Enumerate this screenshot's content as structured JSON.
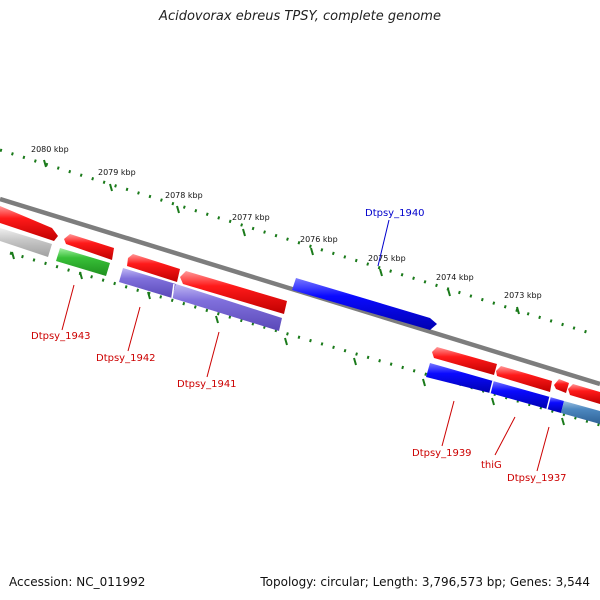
{
  "title": "Acidovorax ebreus TPSY, complete genome",
  "footer": {
    "accession": "Accession: NC_011992",
    "summary": "Topology: circular; Length: 3,796,573 bp; Genes: 3,544"
  },
  "colors": {
    "forward_gene": "#e00000",
    "reverse_gene": "#0000e0",
    "rna_gene": "#30b030",
    "pseudo_gene": "#7060d0",
    "backbone": "#808080",
    "tick": "#1a7a1a",
    "label_red": "#cc0000",
    "label_blue": "#0000cc"
  },
  "kbp_ticks": [
    "2080 kbp",
    "2079 kbp",
    "2078 kbp",
    "2077 kbp",
    "2076 kbp",
    "2075 kbp",
    "2074 kbp",
    "2073 kbp"
  ],
  "gene_labels": [
    "Dtpsy_1943",
    "Dtpsy_1942",
    "Dtpsy_1941",
    "Dtpsy_1940",
    "Dtpsy_1939",
    "thiG",
    "Dtpsy_1937"
  ]
}
